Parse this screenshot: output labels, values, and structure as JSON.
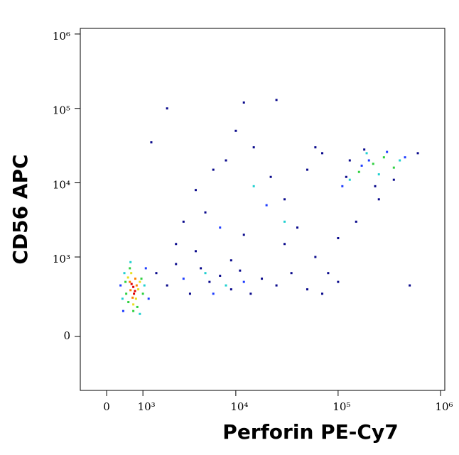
{
  "chart_data": {
    "type": "scatter",
    "x_label": "Perforin PE-Cy7",
    "y_label": "CD56 APC",
    "xscale": "biexponential",
    "yscale": "biexponential",
    "xlim": [
      -690,
      1100000
    ],
    "ylim": [
      -440,
      1190000
    ],
    "xticks": [
      0,
      {
        "value": 1000,
        "label": "10³"
      },
      {
        "value": 10000,
        "label": "10⁴"
      },
      {
        "value": 100000,
        "label": "10⁵"
      },
      {
        "value": 1000000,
        "label": "10⁶"
      }
    ],
    "yticks": [
      0,
      {
        "value": 1000,
        "label": "10³"
      },
      {
        "value": 10000,
        "label": "10⁴"
      },
      {
        "value": 100000,
        "label": "10⁵"
      },
      {
        "value": 1000000,
        "label": "10⁶"
      }
    ],
    "series": [
      {
        "color": "#0a0a8c",
        "points": [
          [
            1500,
            600
          ],
          [
            2000,
            400
          ],
          [
            2500,
            800
          ],
          [
            3500,
            300
          ],
          [
            4500,
            700
          ],
          [
            5500,
            450
          ],
          [
            7000,
            550
          ],
          [
            9000,
            350
          ],
          [
            11000,
            650
          ],
          [
            14000,
            300
          ],
          [
            18000,
            500
          ],
          [
            25000,
            400
          ],
          [
            35000,
            600
          ],
          [
            50000,
            350
          ],
          [
            70000,
            300
          ],
          [
            100000,
            450
          ],
          [
            3000,
            3000
          ],
          [
            4000,
            8000
          ],
          [
            6000,
            15000
          ],
          [
            8000,
            20000
          ],
          [
            10000,
            50000
          ],
          [
            15000,
            30000
          ],
          [
            22000,
            12000
          ],
          [
            30000,
            6000
          ],
          [
            50000,
            15000
          ],
          [
            70000,
            25000
          ],
          [
            2500,
            1500
          ],
          [
            5000,
            4000
          ],
          [
            12000,
            2000
          ],
          [
            40000,
            2500
          ],
          [
            60000,
            1000
          ],
          [
            80000,
            600
          ],
          [
            150000,
            3000
          ],
          [
            250000,
            6000
          ],
          [
            500000,
            400
          ],
          [
            1300,
            35000
          ],
          [
            2000,
            100000
          ],
          [
            12000,
            120000
          ],
          [
            25000,
            130000
          ],
          [
            60000,
            30000
          ],
          [
            120000,
            12000
          ],
          [
            180000,
            28000
          ],
          [
            350000,
            11000
          ],
          [
            600000,
            25000
          ],
          [
            230000,
            9000
          ],
          [
            130000,
            20000
          ],
          [
            4000,
            1200
          ],
          [
            9000,
            900
          ],
          [
            30000,
            1500
          ],
          [
            100000,
            1800
          ]
        ]
      },
      {
        "color": "#1e3cff",
        "points": [
          [
            420,
            150
          ],
          [
            1100,
            700
          ],
          [
            350,
            400
          ],
          [
            1200,
            250
          ],
          [
            3000,
            500
          ],
          [
            6000,
            300
          ],
          [
            12000,
            450
          ],
          [
            200000,
            20000
          ],
          [
            300000,
            26000
          ],
          [
            170000,
            17000
          ],
          [
            450000,
            22000
          ],
          [
            110000,
            9000
          ],
          [
            20000,
            5000
          ],
          [
            7000,
            2500
          ]
        ]
      },
      {
        "color": "#20d0d0",
        "points": [
          [
            450,
            600
          ],
          [
            1050,
            400
          ],
          [
            620,
            850
          ],
          [
            900,
            130
          ],
          [
            400,
            250
          ],
          [
            5000,
            600
          ],
          [
            8000,
            400
          ],
          [
            30000,
            3000
          ],
          [
            190000,
            25000
          ],
          [
            400000,
            20000
          ],
          [
            130000,
            11000
          ],
          [
            250000,
            13000
          ],
          [
            15000,
            9000
          ]
        ]
      },
      {
        "color": "#30d040",
        "points": [
          [
            500,
            300
          ],
          [
            950,
            500
          ],
          [
            600,
            700
          ],
          [
            820,
            180
          ],
          [
            480,
            450
          ],
          [
            1000,
            300
          ],
          [
            700,
            150
          ],
          [
            560,
            220
          ],
          [
            220000,
            18000
          ],
          [
            160000,
            14000
          ],
          [
            280000,
            22000
          ],
          [
            350000,
            16000
          ]
        ]
      },
      {
        "color": "#e8e020",
        "points": [
          [
            550,
            520
          ],
          [
            850,
            350
          ],
          [
            700,
            200
          ],
          [
            640,
            600
          ],
          [
            780,
            250
          ],
          [
            900,
            450
          ]
        ]
      },
      {
        "color": "#ff8000",
        "points": [
          [
            600,
            450
          ],
          [
            800,
            400
          ],
          [
            680,
            260
          ],
          [
            760,
            500
          ],
          [
            620,
            340
          ]
        ]
      },
      {
        "color": "#e00000",
        "points": [
          [
            700,
            380
          ],
          [
            750,
            330
          ],
          [
            650,
            420
          ],
          [
            720,
            300
          ]
        ]
      }
    ]
  }
}
